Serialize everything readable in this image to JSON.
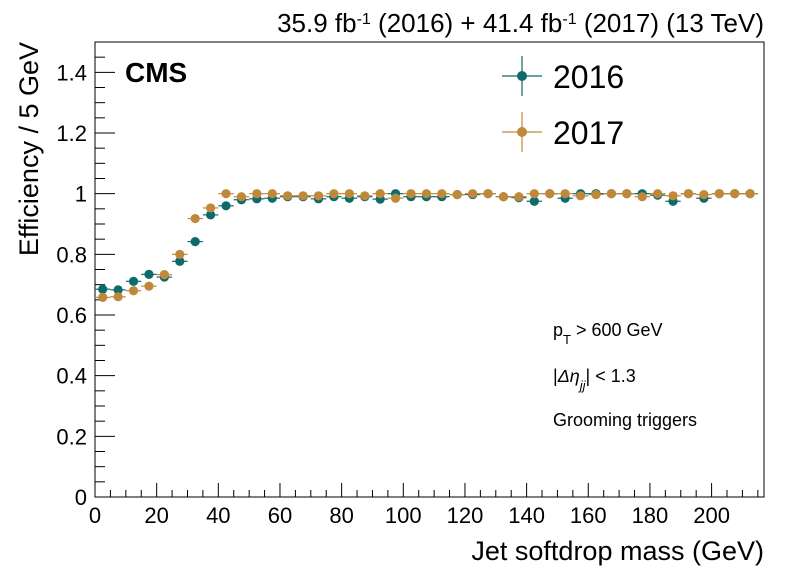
{
  "chart_data": {
    "type": "scatter",
    "title": "35.9 fb-1 (2016) + 41.4 fb-1 (2017) (13 TeV)",
    "title_parts": {
      "lumi2016": "35.9 fb",
      "exp": "-1",
      "mid": " (2016) + 41.4 fb",
      "end": " (2017) (13 TeV)"
    },
    "experiment_label": "CMS",
    "xlabel": "Jet softdrop mass (GeV)",
    "ylabel": "Efficiency / 5 GeV",
    "xlim": [
      0,
      217
    ],
    "ylim": [
      0,
      1.5
    ],
    "x_ticks": [
      0,
      20,
      40,
      60,
      80,
      100,
      120,
      140,
      160,
      180,
      200
    ],
    "y_ticks": [
      0,
      0.2,
      0.4,
      0.6,
      0.8,
      1,
      1.2,
      1.4
    ],
    "y_tick_labels": [
      "0",
      "0.2",
      "0.4",
      "0.6",
      "0.8",
      "1",
      "1.2",
      "1.4"
    ],
    "x_tick_labels": [
      "0",
      "20",
      "40",
      "60",
      "80",
      "100",
      "120",
      "140",
      "160",
      "180",
      "200"
    ],
    "bin_width": 5,
    "grid": false,
    "legend_position": "top-right",
    "annotations": {
      "pt_p": "p",
      "pt_sub": "T",
      "pt_rest": " > 600 GeV",
      "eta_open": "|",
      "eta_delta": "Δη",
      "eta_sub": "jj",
      "eta_rest": "| < 1.3",
      "triggers": "Grooming triggers"
    },
    "series": [
      {
        "name": "2016",
        "color": "#0e6b6b",
        "x": [
          2.5,
          7.5,
          12.5,
          17.5,
          22.5,
          27.5,
          32.5,
          37.5,
          42.5,
          47.5,
          52.5,
          57.5,
          62.5,
          67.5,
          72.5,
          77.5,
          82.5,
          87.5,
          92.5,
          97.5,
          102.5,
          107.5,
          112.5,
          117.5,
          122.5,
          127.5,
          132.5,
          137.5,
          142.5,
          147.5,
          152.5,
          157.5,
          162.5,
          167.5,
          172.5,
          177.5,
          182.5,
          187.5,
          192.5,
          197.5,
          202.5,
          207.5,
          212.5
        ],
        "y": [
          0.685,
          0.683,
          0.711,
          0.734,
          0.725,
          0.777,
          0.842,
          0.93,
          0.96,
          0.98,
          0.983,
          0.985,
          0.99,
          0.99,
          0.983,
          0.99,
          0.985,
          0.99,
          0.982,
          1.0,
          0.99,
          0.99,
          0.99,
          0.997,
          0.997,
          1.0,
          0.99,
          0.987,
          0.975,
          1.0,
          0.985,
          1.0,
          1.0,
          1.0,
          1.0,
          1.0,
          0.995,
          0.975,
          1.0,
          0.985,
          1.0,
          1.0,
          1.0
        ],
        "yerr": [
          0.012,
          0.011,
          0.012,
          0.013,
          0.013,
          0.014,
          0.013,
          0.011,
          0.009,
          0.007,
          0.006,
          0.006,
          0.006,
          0.006,
          0.007,
          0.006,
          0.007,
          0.006,
          0.007,
          0.005,
          0.006,
          0.006,
          0.006,
          0.005,
          0.005,
          0.004,
          0.007,
          0.008,
          0.012,
          0.006,
          0.01,
          0.006,
          0.006,
          0.006,
          0.006,
          0.007,
          0.01,
          0.014,
          0.007,
          0.014,
          0.008,
          0.006,
          0.006
        ]
      },
      {
        "name": "2017",
        "color": "#c0883a",
        "x": [
          2.5,
          7.5,
          12.5,
          17.5,
          22.5,
          27.5,
          32.5,
          37.5,
          42.5,
          47.5,
          52.5,
          57.5,
          62.5,
          67.5,
          72.5,
          77.5,
          82.5,
          87.5,
          92.5,
          97.5,
          102.5,
          107.5,
          112.5,
          117.5,
          122.5,
          127.5,
          132.5,
          137.5,
          142.5,
          147.5,
          152.5,
          157.5,
          162.5,
          167.5,
          172.5,
          177.5,
          182.5,
          187.5,
          192.5,
          197.5,
          202.5,
          207.5,
          212.5
        ],
        "y": [
          0.658,
          0.66,
          0.68,
          0.695,
          0.733,
          0.8,
          0.918,
          0.953,
          1.0,
          0.99,
          1.0,
          1.0,
          0.993,
          0.993,
          0.993,
          1.0,
          1.0,
          0.993,
          1.0,
          0.985,
          1.0,
          1.0,
          1.0,
          0.997,
          1.0,
          1.0,
          0.99,
          0.99,
          1.0,
          1.0,
          1.0,
          0.993,
          0.997,
          1.0,
          1.0,
          0.99,
          1.0,
          0.993,
          1.0,
          0.997,
          1.0,
          1.0,
          1.0
        ],
        "yerr": [
          0.011,
          0.01,
          0.011,
          0.012,
          0.012,
          0.013,
          0.011,
          0.009,
          0.005,
          0.006,
          0.004,
          0.004,
          0.005,
          0.005,
          0.005,
          0.004,
          0.004,
          0.005,
          0.004,
          0.006,
          0.004,
          0.004,
          0.004,
          0.004,
          0.004,
          0.004,
          0.006,
          0.007,
          0.005,
          0.005,
          0.005,
          0.007,
          0.006,
          0.005,
          0.005,
          0.009,
          0.006,
          0.009,
          0.006,
          0.009,
          0.006,
          0.005,
          0.005
        ]
      }
    ]
  }
}
